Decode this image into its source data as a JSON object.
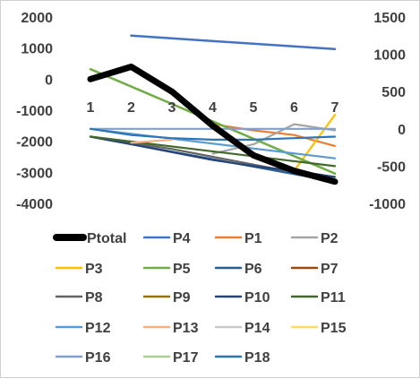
{
  "chart_data": {
    "type": "line",
    "title": "",
    "xlabel": "",
    "ylabel": "",
    "categories": [
      "1",
      "2",
      "3",
      "4",
      "5",
      "6",
      "7"
    ],
    "y_left": {
      "ylim": [
        -4000,
        2000
      ],
      "ticks": [
        "2000",
        "1000",
        "0",
        "-1000",
        "-2000",
        "-3000",
        "-4000"
      ]
    },
    "y_right": {
      "ylim": [
        -1000,
        1500
      ],
      "ticks": [
        "1500",
        "1000",
        "500",
        "0",
        "-500",
        "-1000"
      ]
    },
    "grid": false,
    "legend_position": "bottom",
    "series": [
      {
        "name": "Ptotal",
        "color": "#000000",
        "width": 7,
        "axis": "left",
        "values": [
          0,
          400,
          -400,
          -1500,
          -2450,
          -2950,
          -3300
        ]
      },
      {
        "name": "P4",
        "color": "#4472c4",
        "width": 2.5,
        "axis": "right",
        "values": [
          null,
          1250,
          null,
          null,
          null,
          null,
          1070
        ]
      },
      {
        "name": "P1",
        "color": "#ed7d31",
        "width": 2.2,
        "axis": "left",
        "values": [
          null,
          null,
          null,
          -1450,
          -1650,
          -1800,
          -2150
        ]
      },
      {
        "name": "P2",
        "color": "#a5a5a5",
        "width": 2.2,
        "axis": "left",
        "values": [
          null,
          null,
          null,
          -2400,
          -2100,
          -1450,
          -1650
        ]
      },
      {
        "name": "P3",
        "color": "#ffc000",
        "width": 2.2,
        "axis": "left",
        "values": [
          null,
          null,
          null,
          null,
          null,
          -2950,
          -1150
        ]
      },
      {
        "name": "P5",
        "color": "#70ad47",
        "width": 2.5,
        "axis": "right",
        "values": [
          800,
          null,
          null,
          null,
          null,
          null,
          -600
        ]
      },
      {
        "name": "P6",
        "color": "#255e91",
        "width": 2.2,
        "axis": "left",
        "values": [
          -1850,
          null,
          null,
          null,
          null,
          null,
          -3300
        ]
      },
      {
        "name": "P7",
        "color": "#9e480e",
        "width": 2.2,
        "axis": "left",
        "values": [
          null,
          null,
          null,
          null,
          null,
          null,
          null
        ]
      },
      {
        "name": "P8",
        "color": "#636363",
        "width": 2.2,
        "axis": "left",
        "values": [
          -1850,
          -2050,
          -2250,
          -2500,
          -2750,
          -3000,
          -3250
        ]
      },
      {
        "name": "P9",
        "color": "#997300",
        "width": 2.2,
        "axis": "left",
        "values": [
          null,
          null,
          null,
          null,
          null,
          null,
          null
        ]
      },
      {
        "name": "P10",
        "color": "#264478",
        "width": 2.2,
        "axis": "left",
        "values": [
          -1850,
          -2100,
          -2350,
          -2600,
          -2800,
          -2950,
          -3150
        ]
      },
      {
        "name": "P11",
        "color": "#43682b",
        "width": 2.2,
        "axis": "left",
        "values": [
          -1850,
          null,
          null,
          null,
          null,
          null,
          -2800
        ]
      },
      {
        "name": "P12",
        "color": "#5b9bd5",
        "width": 2.2,
        "axis": "left",
        "values": [
          -1600,
          null,
          null,
          null,
          null,
          null,
          -2550
        ]
      },
      {
        "name": "P13",
        "color": "#f4b183",
        "width": 2.2,
        "axis": "left",
        "values": [
          null,
          -2050,
          -1950,
          null,
          null,
          null,
          null
        ]
      },
      {
        "name": "P14",
        "color": "#c9c9c9",
        "width": 2.2,
        "axis": "left",
        "values": [
          null,
          null,
          null,
          null,
          null,
          null,
          null
        ]
      },
      {
        "name": "P15",
        "color": "#ffd966",
        "width": 2.2,
        "axis": "left",
        "values": [
          null,
          null,
          null,
          null,
          null,
          null,
          null
        ]
      },
      {
        "name": "P16",
        "color": "#7f9fd6",
        "width": 2.2,
        "axis": "left",
        "values": [
          -1600,
          -1600,
          -1600,
          -1600,
          -1600,
          -1600,
          -1600
        ]
      },
      {
        "name": "P17",
        "color": "#a9d18e",
        "width": 2.2,
        "axis": "left",
        "values": [
          null,
          null,
          null,
          null,
          null,
          null,
          null
        ]
      },
      {
        "name": "P18",
        "color": "#2e75b6",
        "width": 2.2,
        "axis": "left",
        "values": [
          -1600,
          -1800,
          -1900,
          -1950,
          -1950,
          -1900,
          -1850
        ]
      }
    ]
  }
}
